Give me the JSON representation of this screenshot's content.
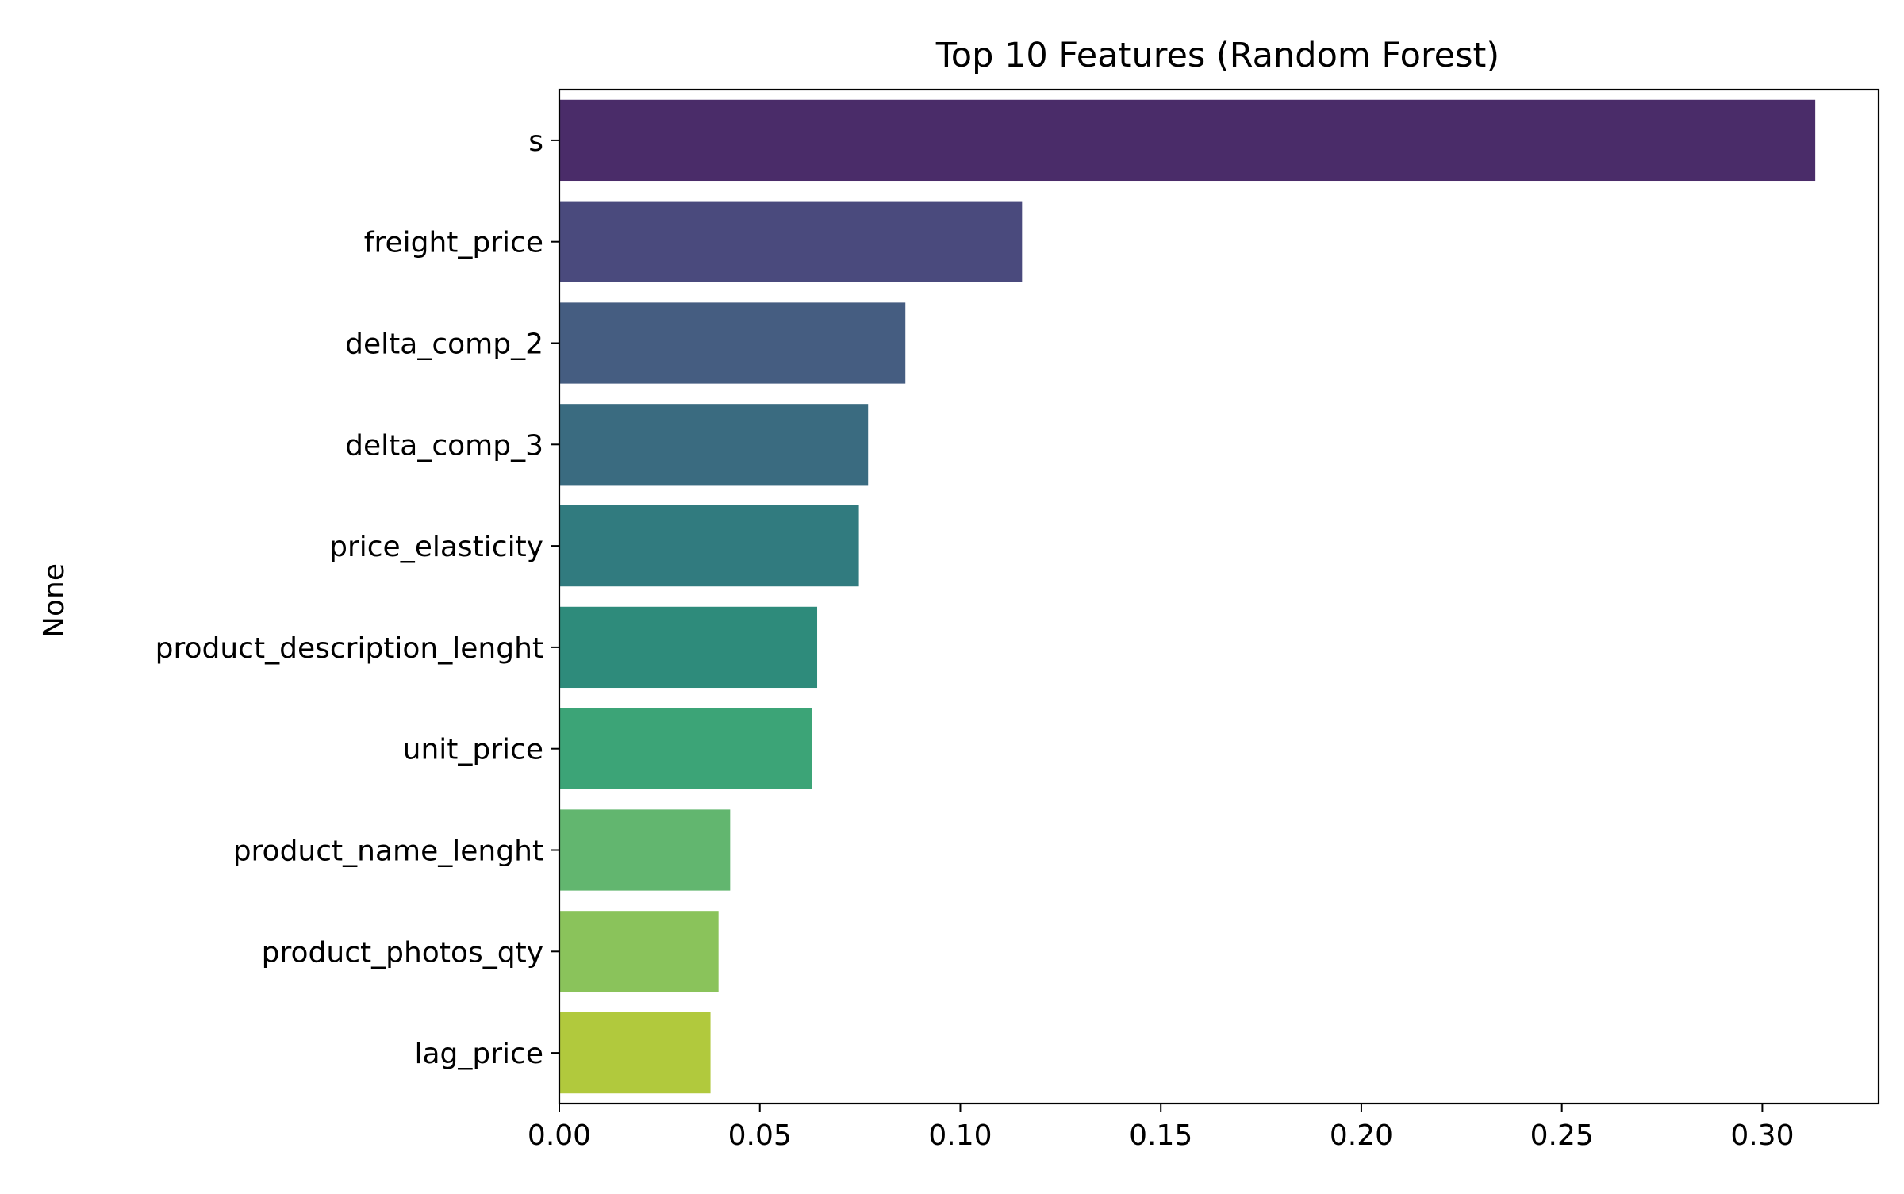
{
  "chart_data": {
    "type": "bar",
    "orientation": "horizontal",
    "title": "Top 10 Features (Random Forest)",
    "xlabel": "",
    "ylabel": "None",
    "categories": [
      "s",
      "freight_price",
      "delta_comp_2",
      "delta_comp_3",
      "price_elasticity",
      "product_description_lenght",
      "unit_price",
      "product_name_lenght",
      "product_photos_qty",
      "lag_price"
    ],
    "values": [
      0.3132,
      0.1154,
      0.0863,
      0.077,
      0.0747,
      0.0643,
      0.063,
      0.0426,
      0.0397,
      0.0377
    ],
    "colors": [
      "#4a2c69",
      "#4a4a7d",
      "#455d81",
      "#3a6b80",
      "#317b7f",
      "#2e8b7b",
      "#3ca477",
      "#62b66f",
      "#8ac35b",
      "#b1c93d"
    ],
    "xlim": [
      0,
      0.329
    ],
    "xticks": [
      0.0,
      0.05,
      0.1,
      0.15,
      0.2,
      0.25,
      0.3
    ],
    "xtick_labels": [
      "0.00",
      "0.05",
      "0.10",
      "0.15",
      "0.20",
      "0.25",
      "0.30"
    ],
    "grid": false,
    "legend": "none"
  }
}
